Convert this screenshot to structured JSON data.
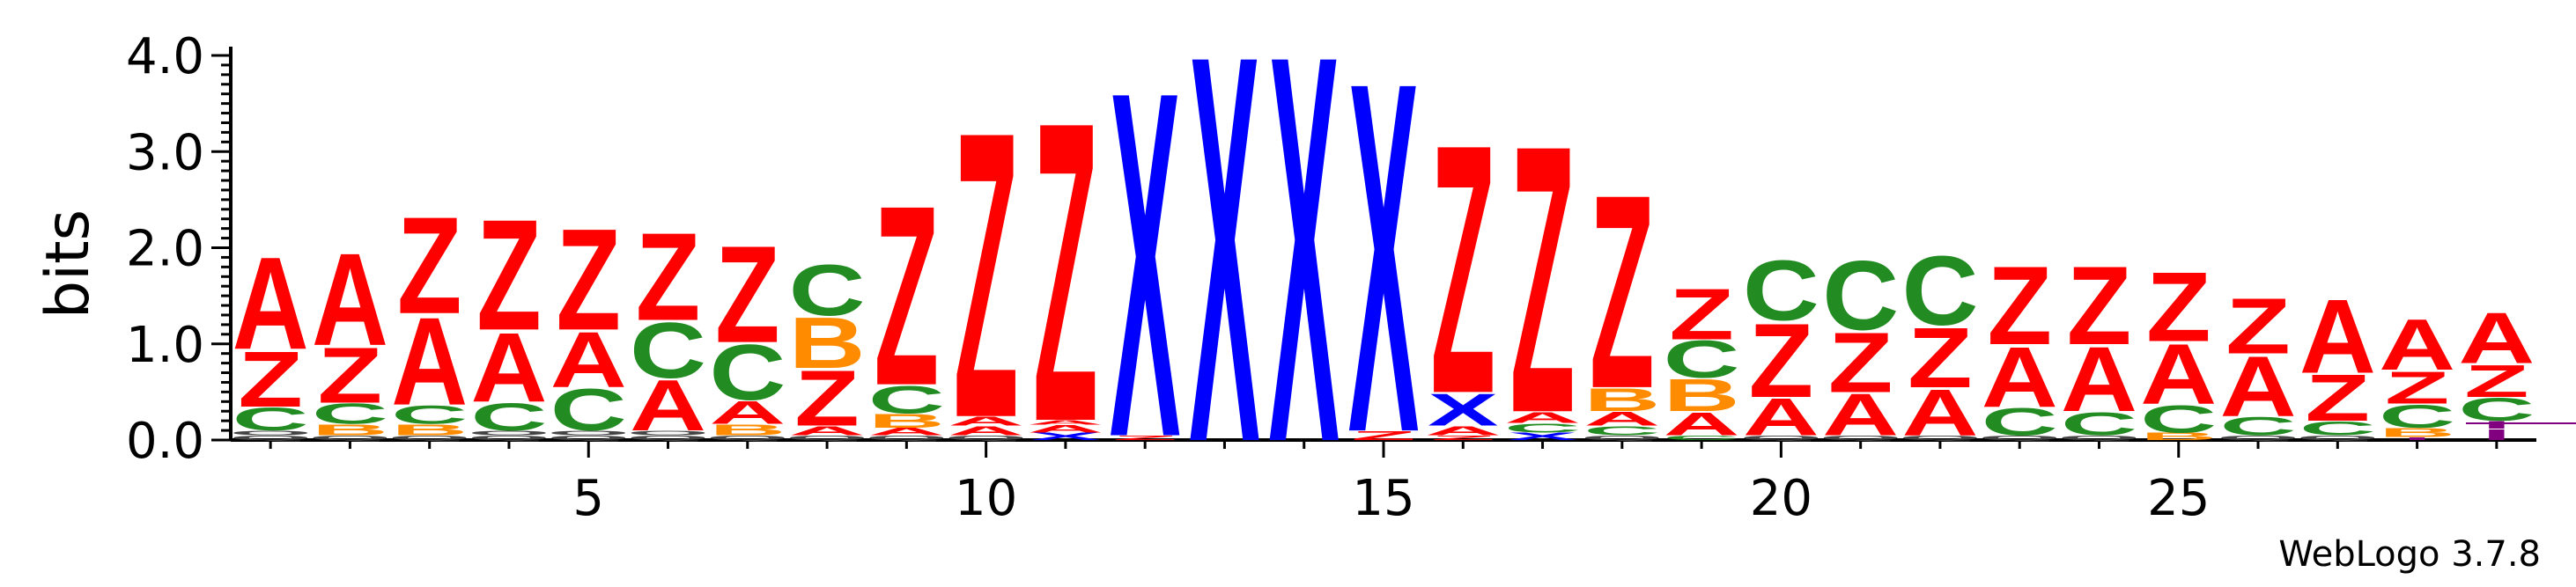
{
  "chart_data": {
    "type": "sequence-logo",
    "ylabel": "bits",
    "ylim": [
      0,
      4.0
    ],
    "y_ticks": [
      "0.0",
      "1.0",
      "2.0",
      "3.0",
      "4.0"
    ],
    "x_ticks": [
      5,
      10,
      15,
      20,
      25
    ],
    "x_range": [
      1,
      29
    ],
    "colors": {
      "A": "#ff0000",
      "Z": "#ff0000",
      "C": "#228b22",
      "B": "#ff8c00",
      "X": "#0000ff",
      "I": "#800080"
    },
    "positions": [
      {
        "pos": 1,
        "stack": [
          [
            "Q",
            0.05
          ],
          [
            "O",
            0.05
          ],
          [
            "C",
            0.25
          ],
          [
            "Z",
            0.6
          ],
          [
            "A",
            1.0
          ]
        ]
      },
      {
        "pos": 2,
        "stack": [
          [
            "Q",
            0.05
          ],
          [
            "B",
            0.12
          ],
          [
            "C",
            0.22
          ],
          [
            "Z",
            0.6
          ],
          [
            "A",
            1.0
          ]
        ]
      },
      {
        "pos": 3,
        "stack": [
          [
            "Q",
            0.05
          ],
          [
            "B",
            0.12
          ],
          [
            "C",
            0.2
          ],
          [
            "A",
            0.95
          ],
          [
            "Z",
            1.05
          ]
        ]
      },
      {
        "pos": 4,
        "stack": [
          [
            "Q",
            0.05
          ],
          [
            "O",
            0.05
          ],
          [
            "C",
            0.3
          ],
          [
            "A",
            0.75
          ],
          [
            "Z",
            1.2
          ]
        ]
      },
      {
        "pos": 5,
        "stack": [
          [
            "Q",
            0.05
          ],
          [
            "O",
            0.05
          ],
          [
            "C",
            0.45
          ],
          [
            "A",
            0.6
          ],
          [
            "Z",
            1.1
          ]
        ]
      },
      {
        "pos": 6,
        "stack": [
          [
            "Q",
            0.05
          ],
          [
            "O",
            0.05
          ],
          [
            "A",
            0.55
          ],
          [
            "C",
            0.6
          ],
          [
            "Z",
            0.95
          ]
        ]
      },
      {
        "pos": 7,
        "stack": [
          [
            "Q",
            0.05
          ],
          [
            "B",
            0.12
          ],
          [
            "A",
            0.25
          ],
          [
            "C",
            0.6
          ],
          [
            "Z",
            1.05
          ]
        ]
      },
      {
        "pos": 8,
        "stack": [
          [
            "Q",
            0.05
          ],
          [
            "A",
            0.1
          ],
          [
            "Z",
            0.6
          ],
          [
            "B",
            0.55
          ],
          [
            "C",
            0.55
          ]
        ]
      },
      {
        "pos": 9,
        "stack": [
          [
            "Q",
            0.05
          ],
          [
            "A",
            0.08
          ],
          [
            "B",
            0.15
          ],
          [
            "C",
            0.3
          ],
          [
            "Z",
            1.95
          ]
        ]
      },
      {
        "pos": 10,
        "stack": [
          [
            "Q",
            0.05
          ],
          [
            "A",
            0.1
          ],
          [
            "A",
            0.1
          ],
          [
            "Z",
            3.1
          ]
        ]
      },
      {
        "pos": 11,
        "stack": [
          [
            "X",
            0.08
          ],
          [
            "A",
            0.08
          ],
          [
            "A",
            0.05
          ],
          [
            "Z",
            3.25
          ]
        ]
      },
      {
        "pos": 12,
        "stack": [
          [
            "Z",
            0.05
          ],
          [
            "X",
            3.75
          ]
        ]
      },
      {
        "pos": 13,
        "stack": [
          [
            "X",
            4.2
          ]
        ]
      },
      {
        "pos": 14,
        "stack": [
          [
            "X",
            4.2
          ]
        ]
      },
      {
        "pos": 15,
        "stack": [
          [
            "Z",
            0.1
          ],
          [
            "X",
            3.8
          ]
        ]
      },
      {
        "pos": 16,
        "stack": [
          [
            "Z",
            0.05
          ],
          [
            "A",
            0.1
          ],
          [
            "X",
            0.35
          ],
          [
            "Z",
            2.7
          ]
        ]
      },
      {
        "pos": 17,
        "stack": [
          [
            "X",
            0.08
          ],
          [
            "C",
            0.1
          ],
          [
            "A",
            0.12
          ],
          [
            "Z",
            2.9
          ]
        ]
      },
      {
        "pos": 18,
        "stack": [
          [
            "Q",
            0.05
          ],
          [
            "C",
            0.1
          ],
          [
            "A",
            0.15
          ],
          [
            "B",
            0.25
          ],
          [
            "Z",
            2.1
          ]
        ]
      },
      {
        "pos": 19,
        "stack": [
          [
            "C",
            0.05
          ],
          [
            "A",
            0.25
          ],
          [
            "B",
            0.35
          ],
          [
            "C",
            0.4
          ],
          [
            "Z",
            0.55
          ]
        ]
      },
      {
        "pos": 20,
        "stack": [
          [
            "Q",
            0.05
          ],
          [
            "A",
            0.4
          ],
          [
            "Z",
            0.8
          ],
          [
            "C",
            0.65
          ]
        ]
      },
      {
        "pos": 21,
        "stack": [
          [
            "Q",
            0.05
          ],
          [
            "A",
            0.45
          ],
          [
            "Z",
            0.65
          ],
          [
            "C",
            0.75
          ]
        ]
      },
      {
        "pos": 22,
        "stack": [
          [
            "Q",
            0.05
          ],
          [
            "A",
            0.5
          ],
          [
            "Z",
            0.65
          ],
          [
            "C",
            0.75
          ]
        ]
      },
      {
        "pos": 23,
        "stack": [
          [
            "Q",
            0.05
          ],
          [
            "C",
            0.3
          ],
          [
            "A",
            0.65
          ],
          [
            "Z",
            0.85
          ]
        ]
      },
      {
        "pos": 24,
        "stack": [
          [
            "Q",
            0.05
          ],
          [
            "C",
            0.25
          ],
          [
            "A",
            0.7
          ],
          [
            "Z",
            0.85
          ]
        ]
      },
      {
        "pos": 25,
        "stack": [
          [
            "B",
            0.08
          ],
          [
            "C",
            0.3
          ],
          [
            "A",
            0.65
          ],
          [
            "Z",
            0.75
          ]
        ]
      },
      {
        "pos": 26,
        "stack": [
          [
            "Q",
            0.05
          ],
          [
            "C",
            0.2
          ],
          [
            "A",
            0.65
          ],
          [
            "Z",
            0.6
          ]
        ]
      },
      {
        "pos": 27,
        "stack": [
          [
            "Q",
            0.05
          ],
          [
            "C",
            0.15
          ],
          [
            "Z",
            0.5
          ],
          [
            "A",
            0.8
          ]
        ]
      },
      {
        "pos": 28,
        "stack": [
          [
            "I",
            0.03
          ],
          [
            "B",
            0.1
          ],
          [
            "C",
            0.25
          ],
          [
            "Z",
            0.35
          ],
          [
            "A",
            0.55
          ]
        ]
      },
      {
        "pos": 29,
        "stack": [
          [
            "I",
            0.12
          ],
          [
            "I",
            0.08
          ],
          [
            "C",
            0.25
          ],
          [
            "Z",
            0.35
          ],
          [
            "A",
            0.55
          ]
        ]
      }
    ]
  },
  "footer": "WebLogo 3.7.8"
}
